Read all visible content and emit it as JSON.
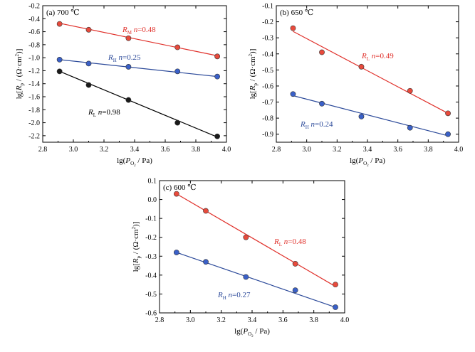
{
  "chart_data": [
    {
      "type": "scatter",
      "panel_label": "(a) 700 ℃",
      "xlabel": "lg(P_O2 / Pa)",
      "ylabel": "lg[R_p / (Ω·cm²)]",
      "xlim": [
        2.8,
        4.0
      ],
      "ylim": [
        -2.3,
        -0.2
      ],
      "xticks": [
        2.8,
        3.0,
        3.2,
        3.4,
        3.6,
        3.8,
        4.0
      ],
      "yticks": [
        -2.2,
        -2.0,
        -1.8,
        -1.6,
        -1.4,
        -1.2,
        -1.0,
        -0.8,
        -0.6,
        -0.4,
        -0.2
      ],
      "tick_decimals": 1,
      "series": [
        {
          "label_main": "R",
          "label_sub": "M",
          "label_rest": " n=0.48",
          "color": "#e0302a",
          "marker": "#e84a3c",
          "x": [
            2.91,
            3.1,
            3.36,
            3.68,
            3.94
          ],
          "y": [
            -0.48,
            -0.57,
            -0.7,
            -0.84,
            -0.98
          ],
          "fit": [
            -0.47,
            -0.97
          ]
        },
        {
          "label_main": "R",
          "label_sub": "H",
          "label_rest": " n=0.25",
          "color": "#2c4a9a",
          "marker": "#3a60c8",
          "x": [
            2.91,
            3.1,
            3.36,
            3.68,
            3.94
          ],
          "y": [
            -1.03,
            -1.09,
            -1.14,
            -1.21,
            -1.29
          ],
          "fit": [
            -1.03,
            -1.29
          ]
        },
        {
          "label_main": "R",
          "label_sub": "L",
          "label_rest": " n=0.98",
          "color": "#000000",
          "marker": "#1a1a1a",
          "x": [
            2.91,
            3.1,
            3.36,
            3.68,
            3.94
          ],
          "y": [
            -1.21,
            -1.42,
            -1.65,
            -2.0,
            -2.21
          ],
          "fit": [
            -1.21,
            -2.22
          ]
        }
      ]
    },
    {
      "type": "scatter",
      "panel_label": "(b) 650 ℃",
      "xlabel": "lg(P_O2 / Pa)",
      "ylabel": "lg[R_p / (Ω·cm²)]",
      "xlim": [
        2.8,
        4.0
      ],
      "ylim": [
        -0.95,
        -0.1
      ],
      "xticks": [
        2.8,
        3.0,
        3.2,
        3.4,
        3.6,
        3.8,
        4.0
      ],
      "yticks": [
        -0.9,
        -0.8,
        -0.7,
        -0.6,
        -0.5,
        -0.4,
        -0.3,
        -0.2,
        -0.1
      ],
      "tick_decimals": 1,
      "series": [
        {
          "label_main": "R",
          "label_sub": "L",
          "label_rest": " n=0.49",
          "color": "#e0302a",
          "marker": "#e84a3c",
          "x": [
            2.91,
            3.1,
            3.36,
            3.68,
            3.93
          ],
          "y": [
            -0.24,
            -0.39,
            -0.48,
            -0.63,
            -0.77
          ],
          "fit": [
            -0.26,
            -0.77
          ]
        },
        {
          "label_main": "R",
          "label_sub": "H",
          "label_rest": " n=0.24",
          "color": "#2c4a9a",
          "marker": "#3a60c8",
          "x": [
            2.91,
            3.1,
            3.36,
            3.68,
            3.93
          ],
          "y": [
            -0.65,
            -0.71,
            -0.79,
            -0.86,
            -0.9
          ],
          "fit": [
            -0.66,
            -0.91
          ]
        }
      ]
    },
    {
      "type": "scatter",
      "panel_label": "(c) 600 ℃",
      "xlabel": "lg(P_O2 / Pa)",
      "ylabel": "lg[R_p / (Ω·cm²)]",
      "xlim": [
        2.8,
        4.0
      ],
      "ylim": [
        -0.6,
        0.1
      ],
      "xticks": [
        2.8,
        3.0,
        3.2,
        3.4,
        3.6,
        3.8,
        4.0
      ],
      "yticks": [
        -0.6,
        -0.5,
        -0.4,
        -0.3,
        -0.2,
        -0.1,
        0.0,
        0.1
      ],
      "tick_decimals": 1,
      "series": [
        {
          "label_main": "R",
          "label_sub": "L",
          "label_rest": " n=0.48",
          "color": "#e0302a",
          "marker": "#e84a3c",
          "x": [
            2.91,
            3.1,
            3.36,
            3.68,
            3.94
          ],
          "y": [
            0.03,
            -0.06,
            -0.2,
            -0.34,
            -0.45
          ],
          "fit": [
            0.03,
            -0.46
          ]
        },
        {
          "label_main": "R",
          "label_sub": "H",
          "label_rest": " n=0.27",
          "color": "#2c4a9a",
          "marker": "#3a60c8",
          "x": [
            2.91,
            3.1,
            3.36,
            3.68,
            3.94
          ],
          "y": [
            -0.28,
            -0.33,
            -0.41,
            -0.48,
            -0.57
          ],
          "fit": [
            -0.28,
            -0.57
          ]
        }
      ]
    }
  ]
}
